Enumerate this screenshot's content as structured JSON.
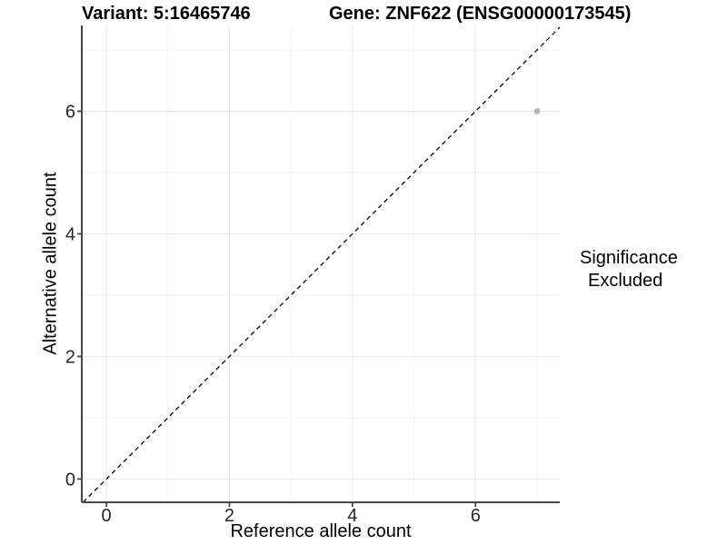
{
  "chart_data": {
    "type": "scatter",
    "title_left": "Variant: 5:16465746",
    "title_right": "Gene: ZNF622 (ENSG00000173545)",
    "xlabel": "Reference allele count",
    "ylabel": "Alternative allele count",
    "xlim": [
      -0.4,
      7.37
    ],
    "ylim": [
      -0.38,
      7.4
    ],
    "x_ticks": [
      0,
      2,
      4,
      6
    ],
    "y_ticks": [
      0,
      2,
      4,
      6
    ],
    "x_minor_ticks": [
      1,
      3,
      5,
      7
    ],
    "y_minor_ticks": [
      1,
      3,
      5,
      7
    ],
    "grid": true,
    "points": [
      {
        "x": 7,
        "y": 6,
        "series": "Excluded"
      }
    ],
    "reference_line": {
      "type": "identity y=x",
      "style": "dashed",
      "color": "#000000"
    },
    "legend": {
      "position": "right",
      "title": "Significance",
      "items": [
        {
          "label": "Excluded",
          "color": "#b4b4b4"
        }
      ]
    },
    "colors": {
      "background": "#ffffff",
      "point": "#b4b4b4",
      "axis_line": "#474747",
      "grid_major": "#e8e8e8",
      "grid_minor": "#f3f3f3",
      "tick_label": "#262626",
      "text": "#000000"
    }
  }
}
